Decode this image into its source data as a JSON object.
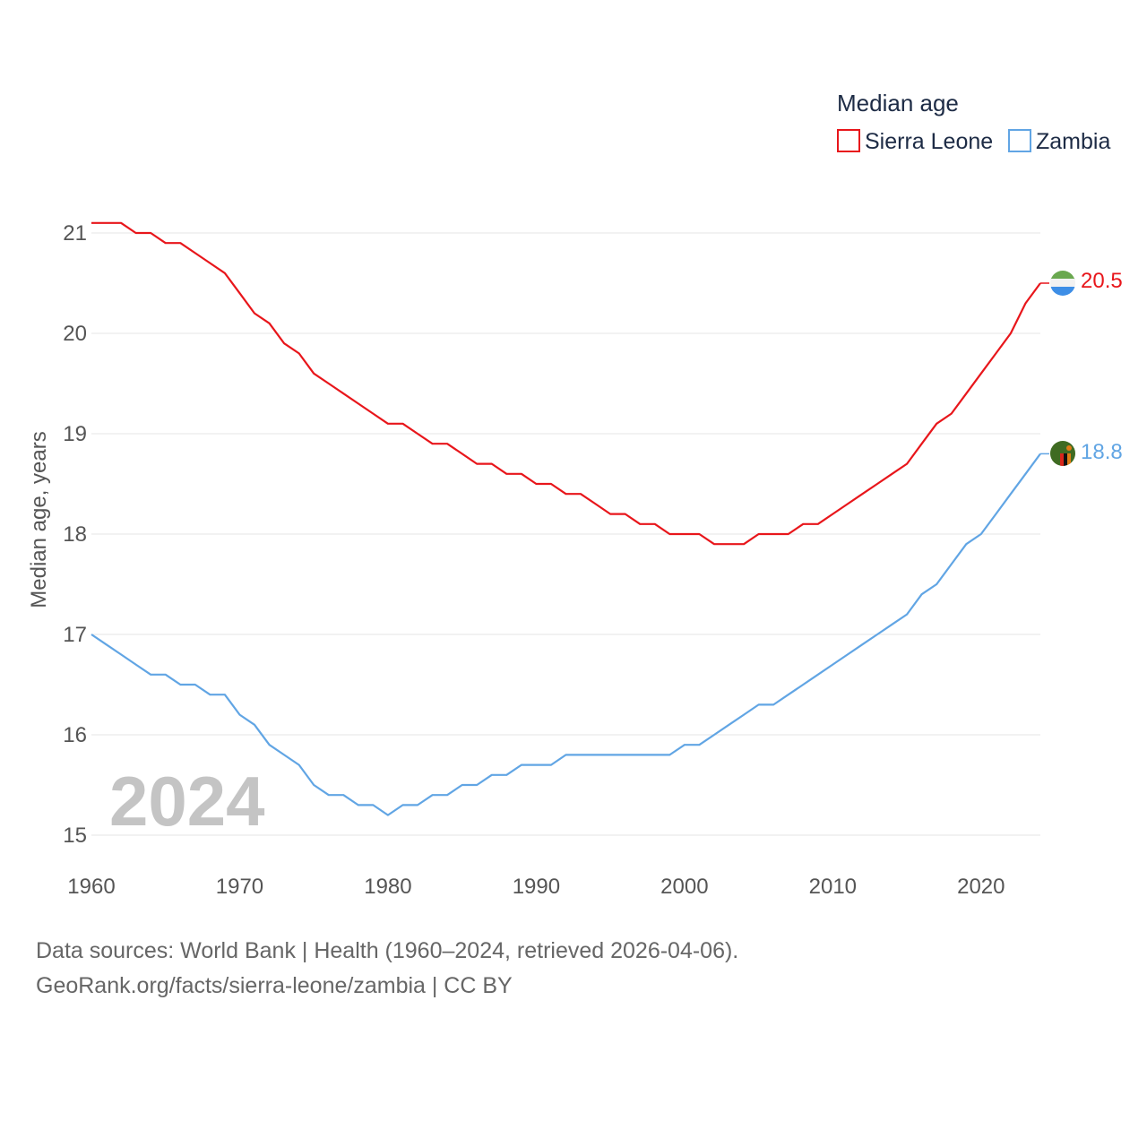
{
  "chart_data": {
    "type": "line",
    "legend_title": "Median age",
    "ylabel": "Median age, years",
    "xlabel": "",
    "xlim": [
      1960,
      2024
    ],
    "ylim": [
      15,
      21
    ],
    "x_ticks": [
      1960,
      1970,
      1980,
      1990,
      2000,
      2010,
      2020
    ],
    "y_ticks": [
      15,
      16,
      17,
      18,
      19,
      20,
      21
    ],
    "grid": "horizontal",
    "legend_position": "top-right",
    "year_label": "2024",
    "x": [
      1960,
      1961,
      1962,
      1963,
      1964,
      1965,
      1966,
      1967,
      1968,
      1969,
      1970,
      1971,
      1972,
      1973,
      1974,
      1975,
      1976,
      1977,
      1978,
      1979,
      1980,
      1981,
      1982,
      1983,
      1984,
      1985,
      1986,
      1987,
      1988,
      1989,
      1990,
      1991,
      1992,
      1993,
      1994,
      1995,
      1996,
      1997,
      1998,
      1999,
      2000,
      2001,
      2002,
      2003,
      2004,
      2005,
      2006,
      2007,
      2008,
      2009,
      2010,
      2011,
      2012,
      2013,
      2014,
      2015,
      2016,
      2017,
      2018,
      2019,
      2020,
      2021,
      2022,
      2023,
      2024
    ],
    "series": [
      {
        "name": "Sierra Leone",
        "color": "#e8161b",
        "flag": "sierra-leone-flag",
        "end_label": "20.5",
        "values": [
          21.1,
          21.1,
          21.1,
          21.0,
          21.0,
          20.9,
          20.9,
          20.8,
          20.7,
          20.6,
          20.4,
          20.2,
          20.1,
          19.9,
          19.8,
          19.6,
          19.5,
          19.4,
          19.3,
          19.2,
          19.1,
          19.1,
          19.0,
          18.9,
          18.9,
          18.8,
          18.7,
          18.7,
          18.6,
          18.6,
          18.5,
          18.5,
          18.4,
          18.4,
          18.3,
          18.2,
          18.2,
          18.1,
          18.1,
          18.0,
          18.0,
          18.0,
          17.9,
          17.9,
          17.9,
          18.0,
          18.0,
          18.0,
          18.1,
          18.1,
          18.2,
          18.3,
          18.4,
          18.5,
          18.6,
          18.7,
          18.9,
          19.1,
          19.2,
          19.4,
          19.6,
          19.8,
          20.0,
          20.3,
          20.5
        ]
      },
      {
        "name": "Zambia",
        "color": "#61a5e4",
        "flag": "zambia-flag",
        "end_label": "18.8",
        "values": [
          17.0,
          16.9,
          16.8,
          16.7,
          16.6,
          16.6,
          16.5,
          16.5,
          16.4,
          16.4,
          16.2,
          16.1,
          15.9,
          15.8,
          15.7,
          15.5,
          15.4,
          15.4,
          15.3,
          15.3,
          15.2,
          15.3,
          15.3,
          15.4,
          15.4,
          15.5,
          15.5,
          15.6,
          15.6,
          15.7,
          15.7,
          15.7,
          15.8,
          15.8,
          15.8,
          15.8,
          15.8,
          15.8,
          15.8,
          15.8,
          15.9,
          15.9,
          16.0,
          16.1,
          16.2,
          16.3,
          16.3,
          16.4,
          16.5,
          16.6,
          16.7,
          16.8,
          16.9,
          17.0,
          17.1,
          17.2,
          17.4,
          17.5,
          17.7,
          17.9,
          18.0,
          18.2,
          18.4,
          18.6,
          18.8
        ]
      }
    ]
  },
  "footer": {
    "sources": "Data sources: World Bank | Health (1960–2024, retrieved 2026-04-06).",
    "credit": "GeoRank.org/facts/sierra-leone/zambia | CC BY"
  }
}
